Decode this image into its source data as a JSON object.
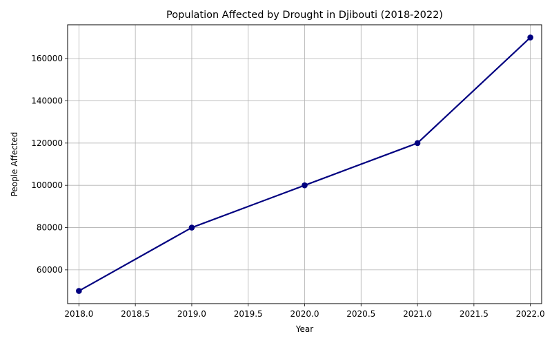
{
  "chart_data": {
    "type": "line",
    "title": "Population Affected by Drought in Djibouti (2018-2022)",
    "xlabel": "Year",
    "ylabel": "People Affected",
    "x": [
      2018,
      2019,
      2020,
      2021,
      2022
    ],
    "series": [
      {
        "values": [
          50000,
          80000,
          100000,
          120000,
          170000
        ],
        "color": "#000080",
        "marker": "circle"
      }
    ],
    "xlim": [
      2017.9,
      2022.1
    ],
    "ylim": [
      44000,
      176000
    ],
    "xticks": [
      2018.0,
      2018.5,
      2019.0,
      2019.5,
      2020.0,
      2020.5,
      2021.0,
      2021.5,
      2022.0
    ],
    "xtick_labels": [
      "2018.0",
      "2018.5",
      "2019.0",
      "2019.5",
      "2020.0",
      "2020.5",
      "2021.0",
      "2021.5",
      "2022.0"
    ],
    "yticks": [
      60000,
      80000,
      100000,
      120000,
      140000,
      160000
    ],
    "ytick_labels": [
      "60000",
      "80000",
      "100000",
      "120000",
      "140000",
      "160000"
    ],
    "grid": true,
    "grid_color": "#b0b0b0",
    "legend": false
  }
}
